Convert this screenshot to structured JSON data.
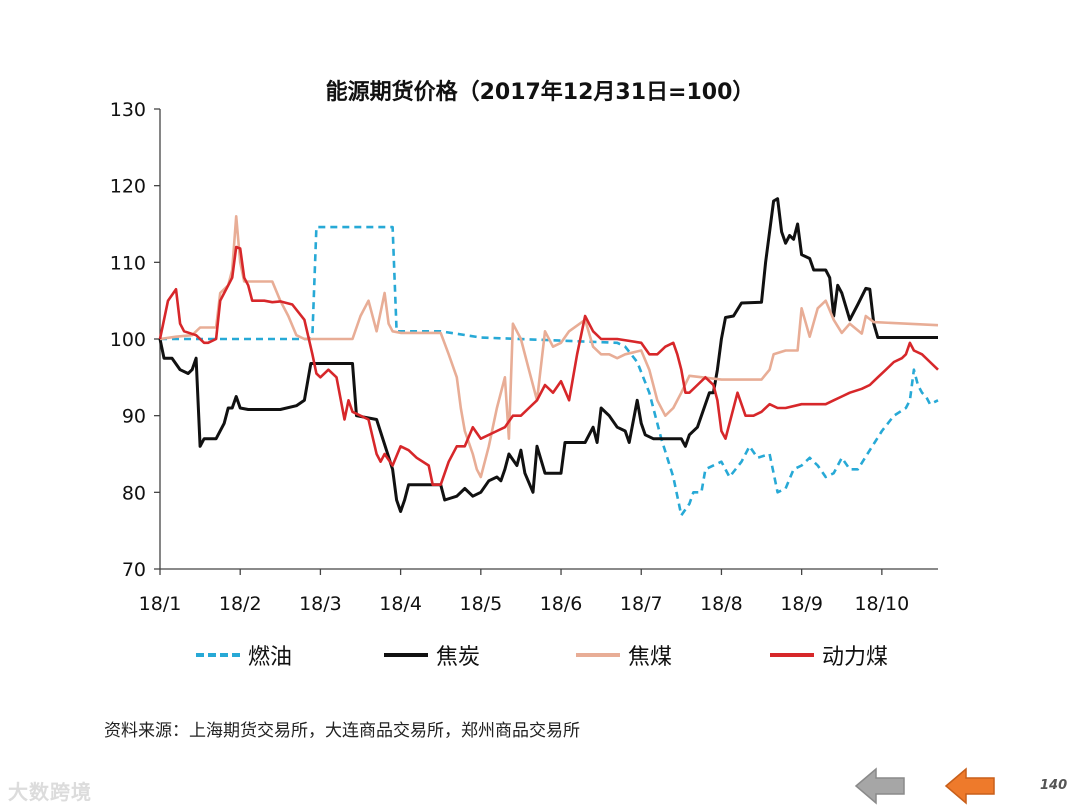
{
  "chart_data": {
    "type": "line",
    "title": "能源期货价格（2017年12月31日=100）",
    "x_tick_labels": [
      "18/1",
      "18/2",
      "18/3",
      "18/4",
      "18/5",
      "18/6",
      "18/7",
      "18/8",
      "18/9",
      "18/10"
    ],
    "x_range": [
      0,
      9.7
    ],
    "ylim": [
      70,
      130
    ],
    "y_ticks": [
      70,
      80,
      90,
      100,
      110,
      120,
      130
    ],
    "grid": false,
    "legend_position": "bottom",
    "series": [
      {
        "name": "燃油",
        "color": "#27a9d6",
        "dash": "dashed",
        "points": [
          [
            0,
            100
          ],
          [
            1.85,
            100
          ],
          [
            1.9,
            100.5
          ],
          [
            1.95,
            114.6
          ],
          [
            2.9,
            114.6
          ],
          [
            2.95,
            101
          ],
          [
            3.5,
            101
          ],
          [
            4,
            100.2
          ],
          [
            5.7,
            99.5
          ],
          [
            5.8,
            99
          ],
          [
            5.95,
            97
          ],
          [
            6.1,
            93
          ],
          [
            6.25,
            87
          ],
          [
            6.4,
            82
          ],
          [
            6.5,
            77
          ],
          [
            6.6,
            78.5
          ],
          [
            6.65,
            80
          ],
          [
            6.75,
            80
          ],
          [
            6.8,
            83
          ],
          [
            7,
            84
          ],
          [
            7.1,
            82
          ],
          [
            7.25,
            84
          ],
          [
            7.35,
            86
          ],
          [
            7.45,
            84.5
          ],
          [
            7.6,
            85
          ],
          [
            7.7,
            80
          ],
          [
            7.8,
            80.5
          ],
          [
            7.9,
            83
          ],
          [
            8,
            83.5
          ],
          [
            8.1,
            84.5
          ],
          [
            8.2,
            83.5
          ],
          [
            8.3,
            82
          ],
          [
            8.4,
            82.5
          ],
          [
            8.5,
            84.5
          ],
          [
            8.6,
            83
          ],
          [
            8.7,
            83
          ],
          [
            8.85,
            85.5
          ],
          [
            9,
            88
          ],
          [
            9.15,
            90
          ],
          [
            9.3,
            91
          ],
          [
            9.35,
            92
          ],
          [
            9.4,
            96
          ],
          [
            9.45,
            94
          ],
          [
            9.5,
            93
          ],
          [
            9.55,
            92.5
          ],
          [
            9.6,
            91.5
          ],
          [
            9.7,
            92
          ]
        ]
      },
      {
        "name": "焦炭",
        "color": "#111111",
        "dash": "solid",
        "points": [
          [
            0,
            100
          ],
          [
            0.05,
            97.5
          ],
          [
            0.15,
            97.5
          ],
          [
            0.25,
            96
          ],
          [
            0.35,
            95.5
          ],
          [
            0.4,
            96
          ],
          [
            0.45,
            97.5
          ],
          [
            0.5,
            86
          ],
          [
            0.55,
            87
          ],
          [
            0.7,
            87
          ],
          [
            0.8,
            89
          ],
          [
            0.85,
            91
          ],
          [
            0.9,
            91
          ],
          [
            0.95,
            92.5
          ],
          [
            1,
            91
          ],
          [
            1.1,
            90.8
          ],
          [
            1.5,
            90.8
          ],
          [
            1.7,
            91.3
          ],
          [
            1.8,
            92
          ],
          [
            1.88,
            96.8
          ],
          [
            2.4,
            96.8
          ],
          [
            2.45,
            90
          ],
          [
            2.7,
            89.5
          ],
          [
            2.9,
            83
          ],
          [
            2.95,
            79
          ],
          [
            3,
            77.5
          ],
          [
            3.05,
            79
          ],
          [
            3.1,
            81
          ],
          [
            3.5,
            81
          ],
          [
            3.55,
            79
          ],
          [
            3.7,
            79.5
          ],
          [
            3.8,
            80.5
          ],
          [
            3.9,
            79.5
          ],
          [
            4,
            80
          ],
          [
            4.1,
            81.5
          ],
          [
            4.2,
            82
          ],
          [
            4.25,
            81.5
          ],
          [
            4.3,
            83
          ],
          [
            4.35,
            85
          ],
          [
            4.45,
            83.5
          ],
          [
            4.5,
            85.5
          ],
          [
            4.55,
            82.5
          ],
          [
            4.65,
            80
          ],
          [
            4.7,
            86
          ],
          [
            4.8,
            82.5
          ],
          [
            5,
            82.5
          ],
          [
            5.05,
            86.5
          ],
          [
            5.3,
            86.5
          ],
          [
            5.4,
            88.5
          ],
          [
            5.45,
            86.5
          ],
          [
            5.5,
            91
          ],
          [
            5.6,
            90
          ],
          [
            5.7,
            88.5
          ],
          [
            5.8,
            88
          ],
          [
            5.85,
            86.5
          ],
          [
            5.95,
            92
          ],
          [
            6,
            89
          ],
          [
            6.05,
            87.5
          ],
          [
            6.15,
            87
          ],
          [
            6.5,
            87
          ],
          [
            6.55,
            86
          ],
          [
            6.6,
            87.5
          ],
          [
            6.7,
            88.5
          ],
          [
            6.8,
            91.5
          ],
          [
            6.85,
            93
          ],
          [
            6.9,
            93
          ],
          [
            6.95,
            96
          ],
          [
            7,
            100
          ],
          [
            7.05,
            102.8
          ],
          [
            7.15,
            103
          ],
          [
            7.25,
            104.7
          ],
          [
            7.5,
            104.8
          ],
          [
            7.55,
            110
          ],
          [
            7.6,
            114
          ],
          [
            7.65,
            118
          ],
          [
            7.7,
            118.3
          ],
          [
            7.75,
            114
          ],
          [
            7.8,
            112.5
          ],
          [
            7.85,
            113.5
          ],
          [
            7.9,
            113
          ],
          [
            7.95,
            115
          ],
          [
            8,
            111
          ],
          [
            8.1,
            110.5
          ],
          [
            8.15,
            109
          ],
          [
            8.3,
            109
          ],
          [
            8.35,
            108
          ],
          [
            8.4,
            103
          ],
          [
            8.45,
            107
          ],
          [
            8.5,
            106
          ],
          [
            8.6,
            102.5
          ],
          [
            8.7,
            104.5
          ],
          [
            8.8,
            106.6
          ],
          [
            8.85,
            106.5
          ],
          [
            8.9,
            102
          ],
          [
            8.95,
            100.2
          ],
          [
            9.7,
            100.2
          ]
        ]
      },
      {
        "name": "焦煤",
        "color": "#e8ad96",
        "dash": "solid",
        "points": [
          [
            0,
            100
          ],
          [
            0.2,
            100.3
          ],
          [
            0.4,
            100.5
          ],
          [
            0.5,
            101.5
          ],
          [
            0.7,
            101.5
          ],
          [
            0.75,
            106
          ],
          [
            0.85,
            107
          ],
          [
            0.9,
            109
          ],
          [
            0.95,
            116
          ],
          [
            1,
            110
          ],
          [
            1.05,
            107.5
          ],
          [
            1.4,
            107.5
          ],
          [
            1.5,
            105
          ],
          [
            1.6,
            103
          ],
          [
            1.7,
            100.5
          ],
          [
            1.8,
            100
          ],
          [
            1.95,
            100
          ],
          [
            2.4,
            100
          ],
          [
            2.5,
            103
          ],
          [
            2.6,
            105
          ],
          [
            2.7,
            101
          ],
          [
            2.8,
            106
          ],
          [
            2.85,
            102
          ],
          [
            2.9,
            101
          ],
          [
            3,
            100.8
          ],
          [
            3.5,
            100.8
          ],
          [
            3.6,
            98
          ],
          [
            3.7,
            95
          ],
          [
            3.75,
            91
          ],
          [
            3.8,
            88
          ],
          [
            3.9,
            85
          ],
          [
            3.95,
            83
          ],
          [
            4,
            82
          ],
          [
            4.05,
            84
          ],
          [
            4.1,
            86
          ],
          [
            4.2,
            91
          ],
          [
            4.3,
            95
          ],
          [
            4.35,
            87
          ],
          [
            4.4,
            102
          ],
          [
            4.5,
            100
          ],
          [
            4.6,
            96
          ],
          [
            4.7,
            92
          ],
          [
            4.8,
            101
          ],
          [
            4.9,
            99
          ],
          [
            5,
            99.5
          ],
          [
            5.1,
            101
          ],
          [
            5.3,
            102.5
          ],
          [
            5.4,
            99
          ],
          [
            5.5,
            98
          ],
          [
            5.6,
            98
          ],
          [
            5.7,
            97.5
          ],
          [
            5.8,
            98
          ],
          [
            6,
            98.5
          ],
          [
            6.1,
            96
          ],
          [
            6.2,
            92
          ],
          [
            6.3,
            90
          ],
          [
            6.4,
            91
          ],
          [
            6.5,
            93
          ],
          [
            6.6,
            95.2
          ],
          [
            7,
            94.7
          ],
          [
            7.5,
            94.7
          ],
          [
            7.6,
            96
          ],
          [
            7.65,
            98
          ],
          [
            7.8,
            98.5
          ],
          [
            7.95,
            98.5
          ],
          [
            8,
            104
          ],
          [
            8.1,
            100.3
          ],
          [
            8.2,
            104
          ],
          [
            8.3,
            105
          ],
          [
            8.4,
            102.5
          ],
          [
            8.5,
            100.8
          ],
          [
            8.6,
            102
          ],
          [
            8.75,
            100.7
          ],
          [
            8.8,
            103
          ],
          [
            8.9,
            102.2
          ],
          [
            9.7,
            101.8
          ]
        ]
      },
      {
        "name": "动力煤",
        "color": "#d7272a",
        "dash": "solid",
        "points": [
          [
            0,
            100
          ],
          [
            0.1,
            105
          ],
          [
            0.2,
            106.5
          ],
          [
            0.25,
            102
          ],
          [
            0.3,
            101
          ],
          [
            0.45,
            100.5
          ],
          [
            0.55,
            99.5
          ],
          [
            0.6,
            99.5
          ],
          [
            0.7,
            100
          ],
          [
            0.75,
            105
          ],
          [
            0.8,
            106
          ],
          [
            0.9,
            108
          ],
          [
            0.95,
            112
          ],
          [
            1,
            111.8
          ],
          [
            1.05,
            108
          ],
          [
            1.1,
            107
          ],
          [
            1.15,
            105
          ],
          [
            1.3,
            105
          ],
          [
            1.4,
            104.8
          ],
          [
            1.5,
            104.9
          ],
          [
            1.65,
            104.5
          ],
          [
            1.8,
            102.5
          ],
          [
            1.9,
            98
          ],
          [
            1.95,
            95.5
          ],
          [
            2,
            95
          ],
          [
            2.1,
            96
          ],
          [
            2.2,
            95
          ],
          [
            2.3,
            89.5
          ],
          [
            2.35,
            92
          ],
          [
            2.4,
            90.5
          ],
          [
            2.5,
            90
          ],
          [
            2.6,
            89.5
          ],
          [
            2.7,
            85
          ],
          [
            2.75,
            84
          ],
          [
            2.8,
            85
          ],
          [
            2.9,
            83.5
          ],
          [
            3,
            86
          ],
          [
            3.1,
            85.5
          ],
          [
            3.2,
            84.5
          ],
          [
            3.35,
            83.5
          ],
          [
            3.4,
            81
          ],
          [
            3.5,
            81
          ],
          [
            3.6,
            84
          ],
          [
            3.7,
            86
          ],
          [
            3.8,
            86
          ],
          [
            3.9,
            88.5
          ],
          [
            4,
            87
          ],
          [
            4.2,
            88
          ],
          [
            4.3,
            88.5
          ],
          [
            4.4,
            90
          ],
          [
            4.5,
            90
          ],
          [
            4.6,
            91
          ],
          [
            4.7,
            92
          ],
          [
            4.8,
            94
          ],
          [
            4.9,
            93
          ],
          [
            5,
            94.5
          ],
          [
            5.1,
            92
          ],
          [
            5.2,
            98
          ],
          [
            5.3,
            103
          ],
          [
            5.35,
            102
          ],
          [
            5.4,
            101
          ],
          [
            5.5,
            100
          ],
          [
            5.6,
            100
          ],
          [
            5.7,
            100
          ],
          [
            6,
            99.5
          ],
          [
            6.1,
            98
          ],
          [
            6.2,
            98
          ],
          [
            6.3,
            99
          ],
          [
            6.4,
            99.5
          ],
          [
            6.45,
            98
          ],
          [
            6.5,
            96
          ],
          [
            6.55,
            93
          ],
          [
            6.6,
            93
          ],
          [
            6.7,
            94
          ],
          [
            6.8,
            95
          ],
          [
            6.9,
            94
          ],
          [
            6.95,
            92
          ],
          [
            7,
            88
          ],
          [
            7.05,
            87
          ],
          [
            7.2,
            93
          ],
          [
            7.3,
            90
          ],
          [
            7.4,
            90
          ],
          [
            7.5,
            90.5
          ],
          [
            7.6,
            91.5
          ],
          [
            7.7,
            91
          ],
          [
            7.8,
            91
          ],
          [
            8,
            91.5
          ],
          [
            8.1,
            91.5
          ],
          [
            8.3,
            91.5
          ],
          [
            8.4,
            92
          ],
          [
            8.5,
            92.5
          ],
          [
            8.6,
            93
          ],
          [
            8.75,
            93.5
          ],
          [
            8.85,
            94
          ],
          [
            8.95,
            95
          ],
          [
            9.05,
            96
          ],
          [
            9.15,
            97
          ],
          [
            9.25,
            97.5
          ],
          [
            9.3,
            98
          ],
          [
            9.35,
            99.5
          ],
          [
            9.4,
            98.5
          ],
          [
            9.5,
            98
          ],
          [
            9.6,
            97
          ],
          [
            9.7,
            96
          ]
        ]
      }
    ]
  },
  "source_text": "资料来源：上海期货交易所，大连商品交易所，郑州商品交易所",
  "watermark_text": "大数跨境",
  "page_number": "140",
  "nav": {
    "back_color": "#a6a6a6",
    "forward_color": "#ee7a2b"
  }
}
